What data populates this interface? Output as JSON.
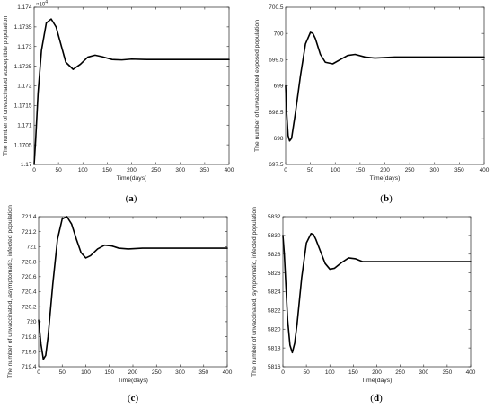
{
  "chart_data": [
    {
      "type": "line",
      "panel": "(a)",
      "xlabel": "Time(days)",
      "ylabel": "The number of unvaccinated susceptible population",
      "xlim": [
        0,
        400
      ],
      "ylim": [
        11700,
        11740
      ],
      "x_ticks": [
        0,
        50,
        100,
        150,
        200,
        250,
        300,
        350,
        400
      ],
      "y_ticks": [
        1.17,
        1.1705,
        1.171,
        1.1715,
        1.172,
        1.1725,
        1.173,
        1.1735,
        1.174
      ],
      "y_tick_scale": 10000,
      "y_multiplier_label": "×10",
      "y_multiplier_exp": "4",
      "series": [
        {
          "x": [
            0,
            3,
            8,
            15,
            25,
            35,
            45,
            55,
            65,
            80,
            95,
            110,
            125,
            140,
            160,
            180,
            200,
            230,
            260,
            300,
            400
          ],
          "y": [
            11700,
            11706,
            11718,
            11729,
            11736,
            11737,
            11735,
            11730.5,
            11726,
            11724.2,
            11725.5,
            11727.3,
            11727.8,
            11727.4,
            11726.7,
            11726.6,
            11726.8,
            11726.7,
            11726.7,
            11726.7,
            11726.7
          ]
        }
      ]
    },
    {
      "type": "line",
      "panel": "(b)",
      "xlabel": "Time(days)",
      "ylabel": "The number of unvaccinated exposed population",
      "xlim": [
        0,
        400
      ],
      "ylim": [
        697.5,
        700.5
      ],
      "x_ticks": [
        0,
        50,
        100,
        150,
        200,
        250,
        300,
        350,
        400
      ],
      "y_ticks": [
        697.5,
        698,
        698.5,
        699,
        699.5,
        700,
        700.5
      ],
      "series": [
        {
          "x": [
            0,
            2,
            5,
            8,
            12,
            20,
            30,
            40,
            50,
            55,
            60,
            70,
            80,
            95,
            110,
            125,
            140,
            160,
            180,
            220,
            260,
            300,
            400
          ],
          "y": [
            699,
            698.5,
            698.05,
            697.95,
            698,
            698.5,
            699.2,
            699.8,
            700.02,
            700,
            699.9,
            699.6,
            699.45,
            699.42,
            699.5,
            699.58,
            699.6,
            699.55,
            699.53,
            699.55,
            699.55,
            699.55,
            699.55
          ]
        }
      ]
    },
    {
      "type": "line",
      "panel": "(c)",
      "xlabel": "Time(days)",
      "ylabel": "The number of unvaccinated, asymptomatic, infected population",
      "xlim": [
        0,
        400
      ],
      "ylim": [
        719.4,
        721.4
      ],
      "x_ticks": [
        0,
        50,
        100,
        150,
        200,
        250,
        300,
        350,
        400
      ],
      "y_ticks": [
        719.4,
        719.6,
        719.8,
        720,
        720.2,
        720.4,
        720.6,
        720.8,
        721,
        721.2,
        721.4
      ],
      "series": [
        {
          "x": [
            0,
            5,
            10,
            15,
            20,
            30,
            40,
            50,
            60,
            70,
            80,
            90,
            100,
            110,
            125,
            140,
            155,
            170,
            190,
            220,
            260,
            300,
            400
          ],
          "y": [
            720.02,
            719.7,
            719.5,
            719.55,
            719.8,
            720.5,
            721.1,
            721.37,
            721.4,
            721.3,
            721.1,
            720.92,
            720.85,
            720.88,
            720.97,
            721.02,
            721.01,
            720.98,
            720.97,
            720.98,
            720.98,
            720.98,
            720.98
          ]
        }
      ]
    },
    {
      "type": "line",
      "panel": "(d)",
      "xlabel": "Time(days)",
      "ylabel": "The number of unvaccinated, symptomatic, infected population",
      "xlim": [
        0,
        400
      ],
      "ylim": [
        5816,
        5832
      ],
      "x_ticks": [
        0,
        50,
        100,
        150,
        200,
        250,
        300,
        350,
        400
      ],
      "y_ticks": [
        5816,
        5818,
        5820,
        5822,
        5824,
        5826,
        5828,
        5830,
        5832
      ],
      "series": [
        {
          "x": [
            0,
            3,
            6,
            10,
            15,
            20,
            25,
            30,
            40,
            50,
            60,
            65,
            70,
            80,
            90,
            100,
            110,
            125,
            140,
            155,
            170,
            190,
            220,
            260,
            300,
            400
          ],
          "y": [
            5830,
            5828,
            5825,
            5821,
            5818.3,
            5817.5,
            5818.5,
            5820.5,
            5825.5,
            5829.2,
            5830.2,
            5830.1,
            5829.6,
            5828.3,
            5827,
            5826.4,
            5826.5,
            5827.1,
            5827.6,
            5827.5,
            5827.2,
            5827.2,
            5827.2,
            5827.2,
            5827.2,
            5827.2
          ]
        }
      ]
    }
  ]
}
